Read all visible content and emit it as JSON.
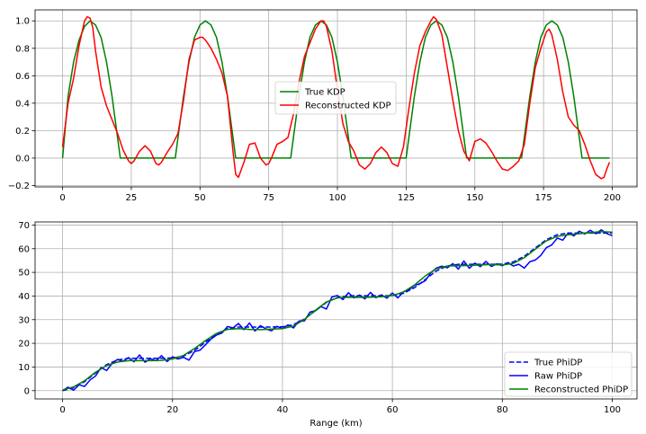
{
  "chart_data": [
    {
      "type": "line",
      "xlim": [
        -10,
        209
      ],
      "ylim": [
        -0.21,
        1.08
      ],
      "xticks": [
        0,
        25,
        50,
        75,
        100,
        125,
        150,
        175,
        200
      ],
      "xtick_labels": [
        "0",
        "25",
        "50",
        "75",
        "100",
        "125",
        "150",
        "175",
        "200"
      ],
      "yticks": [
        -0.2,
        0.0,
        0.2,
        0.4,
        0.6,
        0.8,
        1.0
      ],
      "ytick_labels": [
        "−0.2",
        "0.0",
        "0.2",
        "0.4",
        "0.6",
        "0.8",
        "1.0"
      ],
      "grid": true,
      "legend_position": "center",
      "series": [
        {
          "name": "True KDP",
          "color": "#008000",
          "style": "solid",
          "x": [
            0,
            2,
            4,
            6,
            8,
            10,
            12,
            14,
            16,
            18,
            20,
            21,
            41,
            42,
            44,
            46,
            48,
            50,
            52,
            54,
            56,
            58,
            60,
            62,
            63,
            83,
            84,
            86,
            88,
            90,
            92,
            94,
            96,
            98,
            100,
            102,
            104,
            105,
            125,
            126,
            128,
            130,
            132,
            134,
            136,
            138,
            140,
            142,
            144,
            146,
            147,
            167,
            168,
            170,
            172,
            174,
            176,
            178,
            180,
            182,
            184,
            186,
            188,
            189,
            199
          ],
          "y": [
            0,
            0.45,
            0.7,
            0.86,
            0.96,
            1.0,
            0.97,
            0.88,
            0.7,
            0.45,
            0.15,
            0,
            0,
            0.15,
            0.45,
            0.7,
            0.88,
            0.97,
            1.0,
            0.97,
            0.88,
            0.7,
            0.45,
            0.15,
            0,
            0,
            0.15,
            0.45,
            0.7,
            0.88,
            0.97,
            1.0,
            0.97,
            0.88,
            0.7,
            0.45,
            0.15,
            0,
            0,
            0.15,
            0.45,
            0.7,
            0.88,
            0.97,
            1.0,
            0.97,
            0.88,
            0.7,
            0.45,
            0.15,
            0,
            0,
            0.15,
            0.45,
            0.7,
            0.88,
            0.97,
            1.0,
            0.97,
            0.88,
            0.7,
            0.45,
            0.15,
            0,
            0
          ]
        },
        {
          "name": "Reconstructed KDP",
          "color": "#ff0000",
          "style": "solid",
          "x": [
            0,
            2,
            4,
            6,
            8,
            9,
            10,
            11,
            12,
            14,
            16,
            18,
            20,
            22,
            24,
            25,
            26,
            28,
            30,
            32,
            34,
            35,
            36,
            38,
            40,
            42,
            44,
            46,
            48,
            50,
            51,
            52,
            54,
            56,
            58,
            60,
            62,
            63,
            64,
            66,
            68,
            70,
            72,
            74,
            75,
            76,
            78,
            80,
            82,
            84,
            86,
            88,
            90,
            92,
            94,
            95,
            96,
            98,
            100,
            102,
            104,
            106,
            108,
            110,
            112,
            114,
            116,
            118,
            120,
            122,
            124,
            126,
            128,
            130,
            132,
            134,
            135,
            136,
            138,
            140,
            142,
            144,
            146,
            148,
            150,
            152,
            154,
            156,
            158,
            160,
            162,
            164,
            166,
            168,
            170,
            172,
            174,
            176,
            177,
            178,
            180,
            182,
            184,
            186,
            188,
            190,
            192,
            194,
            196,
            197,
            198,
            199
          ],
          "y": [
            0.08,
            0.4,
            0.58,
            0.82,
            1.0,
            1.03,
            1.02,
            0.95,
            0.78,
            0.52,
            0.38,
            0.28,
            0.18,
            0.06,
            -0.02,
            -0.04,
            -0.02,
            0.05,
            0.09,
            0.05,
            -0.04,
            -0.05,
            -0.03,
            0.04,
            0.1,
            0.18,
            0.42,
            0.72,
            0.86,
            0.88,
            0.88,
            0.86,
            0.8,
            0.72,
            0.62,
            0.45,
            0.05,
            -0.12,
            -0.14,
            -0.03,
            0.1,
            0.11,
            0.0,
            -0.05,
            -0.04,
            0.0,
            0.1,
            0.12,
            0.15,
            0.32,
            0.55,
            0.74,
            0.84,
            0.94,
            1.0,
            1.0,
            0.96,
            0.78,
            0.5,
            0.25,
            0.12,
            0.05,
            -0.05,
            -0.08,
            -0.04,
            0.04,
            0.08,
            0.04,
            -0.04,
            -0.06,
            0.08,
            0.36,
            0.62,
            0.82,
            0.92,
            1.0,
            1.03,
            1.01,
            0.9,
            0.66,
            0.42,
            0.2,
            0.05,
            -0.02,
            0.12,
            0.14,
            0.11,
            0.05,
            -0.02,
            -0.08,
            -0.09,
            -0.06,
            -0.02,
            0.1,
            0.4,
            0.66,
            0.8,
            0.92,
            0.94,
            0.9,
            0.72,
            0.48,
            0.3,
            0.24,
            0.2,
            0.1,
            -0.02,
            -0.12,
            -0.15,
            -0.14,
            -0.08,
            -0.03
          ]
        }
      ]
    },
    {
      "type": "line",
      "xlabel": "Range (km)",
      "xlim": [
        -5,
        104.5
      ],
      "ylim": [
        -3.5,
        71.3
      ],
      "xticks": [
        0,
        20,
        40,
        60,
        80,
        100
      ],
      "xtick_labels": [
        "0",
        "20",
        "40",
        "60",
        "80",
        "100"
      ],
      "yticks": [
        0,
        10,
        20,
        30,
        40,
        50,
        60,
        70
      ],
      "ytick_labels": [
        "0",
        "10",
        "20",
        "30",
        "40",
        "50",
        "60",
        "70"
      ],
      "grid": true,
      "legend_position": "lower right",
      "series": [
        {
          "name": "True PhiDP",
          "color": "#0000ff",
          "style": "dashed",
          "x": [
            0,
            2,
            4,
            6,
            8,
            10,
            12,
            14,
            16,
            18,
            20,
            22,
            24,
            26,
            28,
            30,
            32,
            34,
            36,
            38,
            40,
            42,
            44,
            46,
            48,
            50,
            52,
            54,
            56,
            58,
            60,
            62,
            64,
            66,
            68,
            70,
            72,
            74,
            76,
            78,
            80,
            82,
            84,
            86,
            88,
            90,
            92,
            94,
            96,
            98,
            100
          ],
          "y": [
            0,
            1.2,
            3.8,
            7.5,
            11,
            13,
            13.7,
            13.7,
            13.7,
            13.7,
            13.8,
            14.6,
            17,
            20.5,
            24,
            26.2,
            26.9,
            26.9,
            26.9,
            26.9,
            27,
            27.9,
            30.3,
            33.8,
            37.3,
            39.4,
            40.1,
            40.1,
            40.1,
            40.1,
            40.2,
            41.1,
            43.5,
            47,
            50.6,
            52.7,
            53.4,
            53.4,
            53.4,
            53.4,
            53.5,
            54.4,
            56.8,
            60.3,
            63.8,
            65.9,
            66.6,
            66.6,
            66.6,
            66.6,
            66.6
          ]
        },
        {
          "name": "Raw PhiDP",
          "color": "#0000ff",
          "style": "solid",
          "x": [
            0,
            1,
            2,
            3,
            4,
            5,
            6,
            7,
            8,
            9,
            10,
            11,
            12,
            13,
            14,
            15,
            16,
            17,
            18,
            19,
            20,
            21,
            22,
            23,
            24,
            25,
            26,
            27,
            28,
            29,
            30,
            31,
            32,
            33,
            34,
            35,
            36,
            37,
            38,
            39,
            40,
            41,
            42,
            43,
            44,
            45,
            46,
            47,
            48,
            49,
            50,
            51,
            52,
            53,
            54,
            55,
            56,
            57,
            58,
            59,
            60,
            61,
            62,
            63,
            64,
            65,
            66,
            67,
            68,
            69,
            70,
            71,
            72,
            73,
            74,
            75,
            76,
            77,
            78,
            79,
            80,
            81,
            82,
            83,
            84,
            85,
            86,
            87,
            88,
            89,
            90,
            91,
            92,
            93,
            94,
            95,
            96,
            97,
            98,
            99,
            100
          ],
          "y": [
            0,
            1.5,
            0.2,
            2.5,
            1.8,
            4.5,
            6.2,
            9.8,
            8.5,
            11.5,
            13.2,
            12.4,
            14,
            12.2,
            15.1,
            12,
            13.5,
            12.6,
            14.8,
            12.3,
            14.3,
            13.4,
            14.1,
            12.9,
            16.5,
            17.1,
            19.4,
            21.8,
            23.5,
            24.4,
            27.1,
            26.5,
            28.4,
            25.8,
            28.6,
            25.2,
            27.5,
            26.1,
            25.3,
            27.2,
            26.2,
            27.8,
            26.5,
            29.4,
            29.5,
            33.2,
            33.8,
            35.6,
            34.5,
            39.6,
            40.2,
            38.5,
            41.4,
            39.2,
            40.4,
            38.8,
            41.5,
            39.3,
            40.5,
            39.1,
            41.3,
            39.2,
            41.8,
            42.5,
            44.5,
            45.2,
            46.5,
            49.8,
            51.8,
            52.6,
            51.9,
            53.7,
            51.4,
            54.8,
            51.7,
            53.9,
            52.4,
            54.6,
            52.5,
            53.6,
            52.8,
            54.1,
            52.7,
            53.4,
            51.8,
            54.5,
            55.2,
            57.2,
            60.4,
            61.6,
            64.5,
            63.6,
            66.7,
            65.4,
            67.4,
            66.2,
            67.8,
            66.3,
            68,
            66.4,
            65.5
          ]
        },
        {
          "name": "Reconstructed PhiDP",
          "color": "#008000",
          "style": "solid",
          "x": [
            0,
            2,
            4,
            6,
            8,
            10,
            12,
            14,
            16,
            18,
            20,
            22,
            24,
            26,
            28,
            30,
            32,
            34,
            36,
            38,
            40,
            42,
            44,
            46,
            48,
            50,
            52,
            54,
            56,
            58,
            60,
            62,
            64,
            66,
            68,
            70,
            72,
            74,
            76,
            78,
            80,
            82,
            84,
            86,
            88,
            90,
            92,
            94,
            96,
            98,
            100
          ],
          "y": [
            0.3,
            1.6,
            4.2,
            7.8,
            10.6,
            12.1,
            12.7,
            12.7,
            12.7,
            12.8,
            13.4,
            14.9,
            17.8,
            21.2,
            24.2,
            25.9,
            26.2,
            25.9,
            25.8,
            26,
            26.2,
            27.3,
            30.1,
            34,
            37.5,
            39.2,
            39.5,
            39.4,
            39.5,
            39.7,
            40.2,
            41.7,
            44.6,
            48.5,
            51.5,
            52.7,
            52.8,
            52.9,
            53.1,
            53.3,
            53.1,
            53.8,
            56.2,
            59.8,
            63.3,
            65.2,
            65.9,
            66.3,
            66.8,
            67.2,
            67
          ]
        }
      ]
    }
  ]
}
